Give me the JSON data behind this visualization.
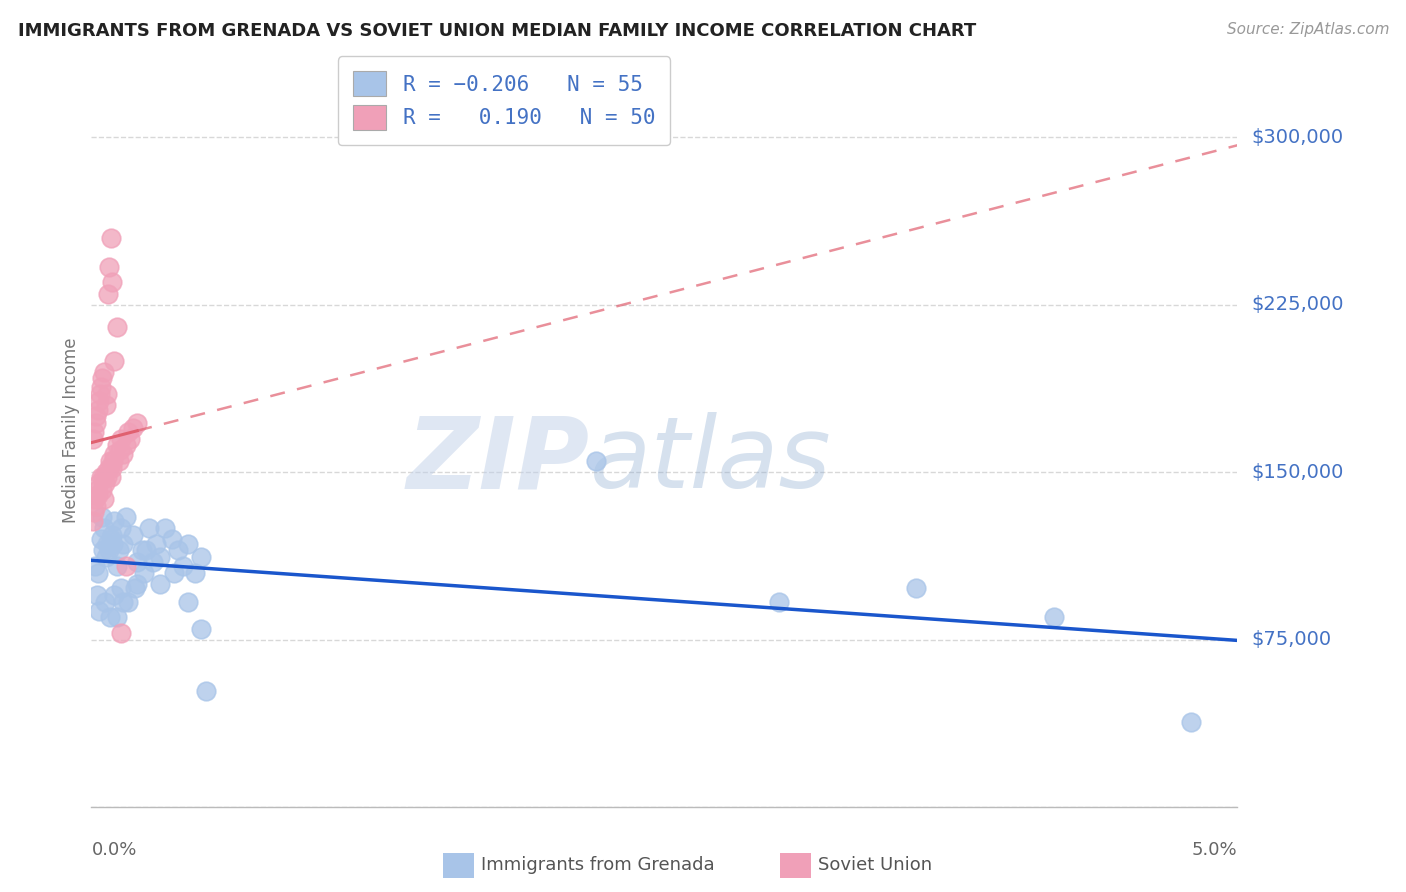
{
  "title": "IMMIGRANTS FROM GRENADA VS SOVIET UNION MEDIAN FAMILY INCOME CORRELATION CHART",
  "source": "Source: ZipAtlas.com",
  "ylabel": "Median Family Income",
  "yticks": [
    0,
    75000,
    150000,
    225000,
    300000
  ],
  "ytick_labels_right": [
    "",
    "$75,000",
    "$150,000",
    "$225,000",
    "$300,000"
  ],
  "xlim": [
    0.0,
    0.05
  ],
  "ylim": [
    0,
    337500
  ],
  "blue_color": "#A8C4E8",
  "pink_color": "#F0A0B8",
  "blue_line_color": "#1A56CC",
  "pink_line_color": "#E06070",
  "axis_label_color": "#4472C4",
  "title_color": "#222222",
  "background_color": "#FFFFFF",
  "grid_color": "#D8D8D8",
  "watermark_color": "#C8D8EE",
  "legend_label1": "Immigrants from Grenada",
  "legend_label2": "Soviet Union",
  "blue_scatter_x": [
    0.00015,
    0.00025,
    0.0004,
    0.0003,
    0.00055,
    0.0005,
    0.0007,
    0.0009,
    0.00065,
    0.001,
    0.0011,
    0.00095,
    0.0013,
    0.0012,
    0.0015,
    0.0014,
    0.0018,
    0.002,
    0.0022,
    0.0025,
    0.0028,
    0.003,
    0.0032,
    0.0035,
    0.0038,
    0.004,
    0.0042,
    0.0045,
    0.0048,
    0.005,
    0.00035,
    0.0006,
    0.0008,
    0.001,
    0.0013,
    0.0016,
    0.002,
    0.0024,
    0.003,
    0.0036,
    0.0042,
    0.0048,
    0.00045,
    0.00075,
    0.00085,
    0.0011,
    0.0014,
    0.0019,
    0.0023,
    0.0027,
    0.042,
    0.036,
    0.03,
    0.048,
    0.022
  ],
  "blue_scatter_y": [
    108000,
    95000,
    120000,
    105000,
    125000,
    115000,
    118000,
    122000,
    112000,
    128000,
    108000,
    118000,
    125000,
    115000,
    130000,
    118000,
    122000,
    110000,
    115000,
    125000,
    118000,
    112000,
    125000,
    120000,
    115000,
    108000,
    118000,
    105000,
    112000,
    52000,
    88000,
    92000,
    85000,
    95000,
    98000,
    92000,
    100000,
    115000,
    100000,
    105000,
    92000,
    80000,
    130000,
    115000,
    120000,
    85000,
    92000,
    98000,
    105000,
    110000,
    85000,
    98000,
    92000,
    38000,
    155000
  ],
  "pink_scatter_x": [
    5e-05,
    0.0001,
    0.00015,
    0.0002,
    0.00025,
    0.0003,
    0.00035,
    0.0004,
    0.00045,
    0.0005,
    0.00055,
    0.0006,
    0.00065,
    0.0007,
    0.00075,
    0.0008,
    0.00085,
    0.0009,
    0.00095,
    0.001,
    0.0011,
    0.0012,
    0.00125,
    0.0013,
    0.0014,
    0.0015,
    0.0016,
    0.0017,
    0.0018,
    0.002,
    8e-05,
    0.00012,
    0.00018,
    0.00022,
    0.00028,
    0.00032,
    0.00038,
    0.00042,
    0.00048,
    0.00055,
    0.00062,
    0.00068,
    0.00072,
    0.00078,
    0.00085,
    0.00092,
    0.00098,
    0.0011,
    0.0013,
    0.0015
  ],
  "pink_scatter_y": [
    128000,
    132000,
    138000,
    135000,
    142000,
    140000,
    145000,
    148000,
    142000,
    148000,
    138000,
    145000,
    150000,
    148000,
    152000,
    155000,
    148000,
    152000,
    155000,
    158000,
    162000,
    155000,
    160000,
    165000,
    158000,
    162000,
    168000,
    165000,
    170000,
    172000,
    165000,
    168000,
    172000,
    175000,
    178000,
    182000,
    185000,
    188000,
    192000,
    195000,
    180000,
    185000,
    230000,
    242000,
    255000,
    235000,
    200000,
    215000,
    78000,
    108000
  ]
}
